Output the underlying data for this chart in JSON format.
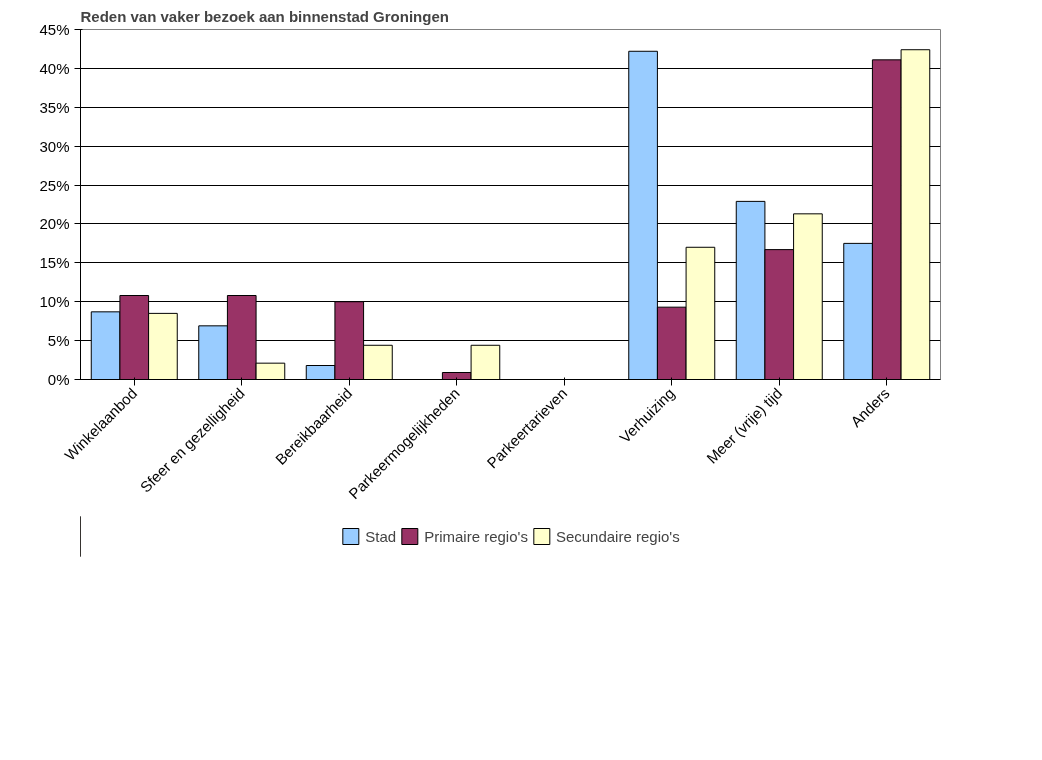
{
  "chart_data": {
    "type": "bar",
    "title": "Reden van vaker bezoek aan binnenstad Groningen",
    "categories": [
      "Winkelaanbod",
      "Sfeer en gezelligheid",
      "Bereikbaarheid",
      "Parkeermogelijkheden",
      "Parkeertarieven",
      "Verhuizing",
      "Meer (vrije) tijd",
      "Anders"
    ],
    "series": [
      {
        "name": "Stad",
        "color": "#99ccff",
        "values": [
          8.7,
          6.9,
          1.8,
          null,
          null,
          42.2,
          22.9,
          17.5
        ]
      },
      {
        "name": "Primaire regio's",
        "color": "#993366",
        "values": [
          10.8,
          10.8,
          10.0,
          0.9,
          null,
          9.3,
          16.7,
          41.1
        ]
      },
      {
        "name": "Secundaire regio's",
        "color": "#ffffcc",
        "values": [
          8.5,
          2.1,
          4.4,
          4.4,
          null,
          17.0,
          21.3,
          42.4
        ]
      }
    ],
    "ylim": [
      0,
      45
    ],
    "yticks": [
      {
        "value": 0,
        "label": "0%"
      },
      {
        "value": 5,
        "label": "5%"
      },
      {
        "value": 10,
        "label": "10%"
      },
      {
        "value": 15,
        "label": "15%"
      },
      {
        "value": 20,
        "label": "20%"
      },
      {
        "value": 25,
        "label": "25%"
      },
      {
        "value": 30,
        "label": "30%"
      },
      {
        "value": 35,
        "label": "35%"
      },
      {
        "value": 40,
        "label": "40%"
      },
      {
        "value": 45,
        "label": "45%"
      }
    ],
    "grid": "y",
    "legend": "bottom"
  }
}
